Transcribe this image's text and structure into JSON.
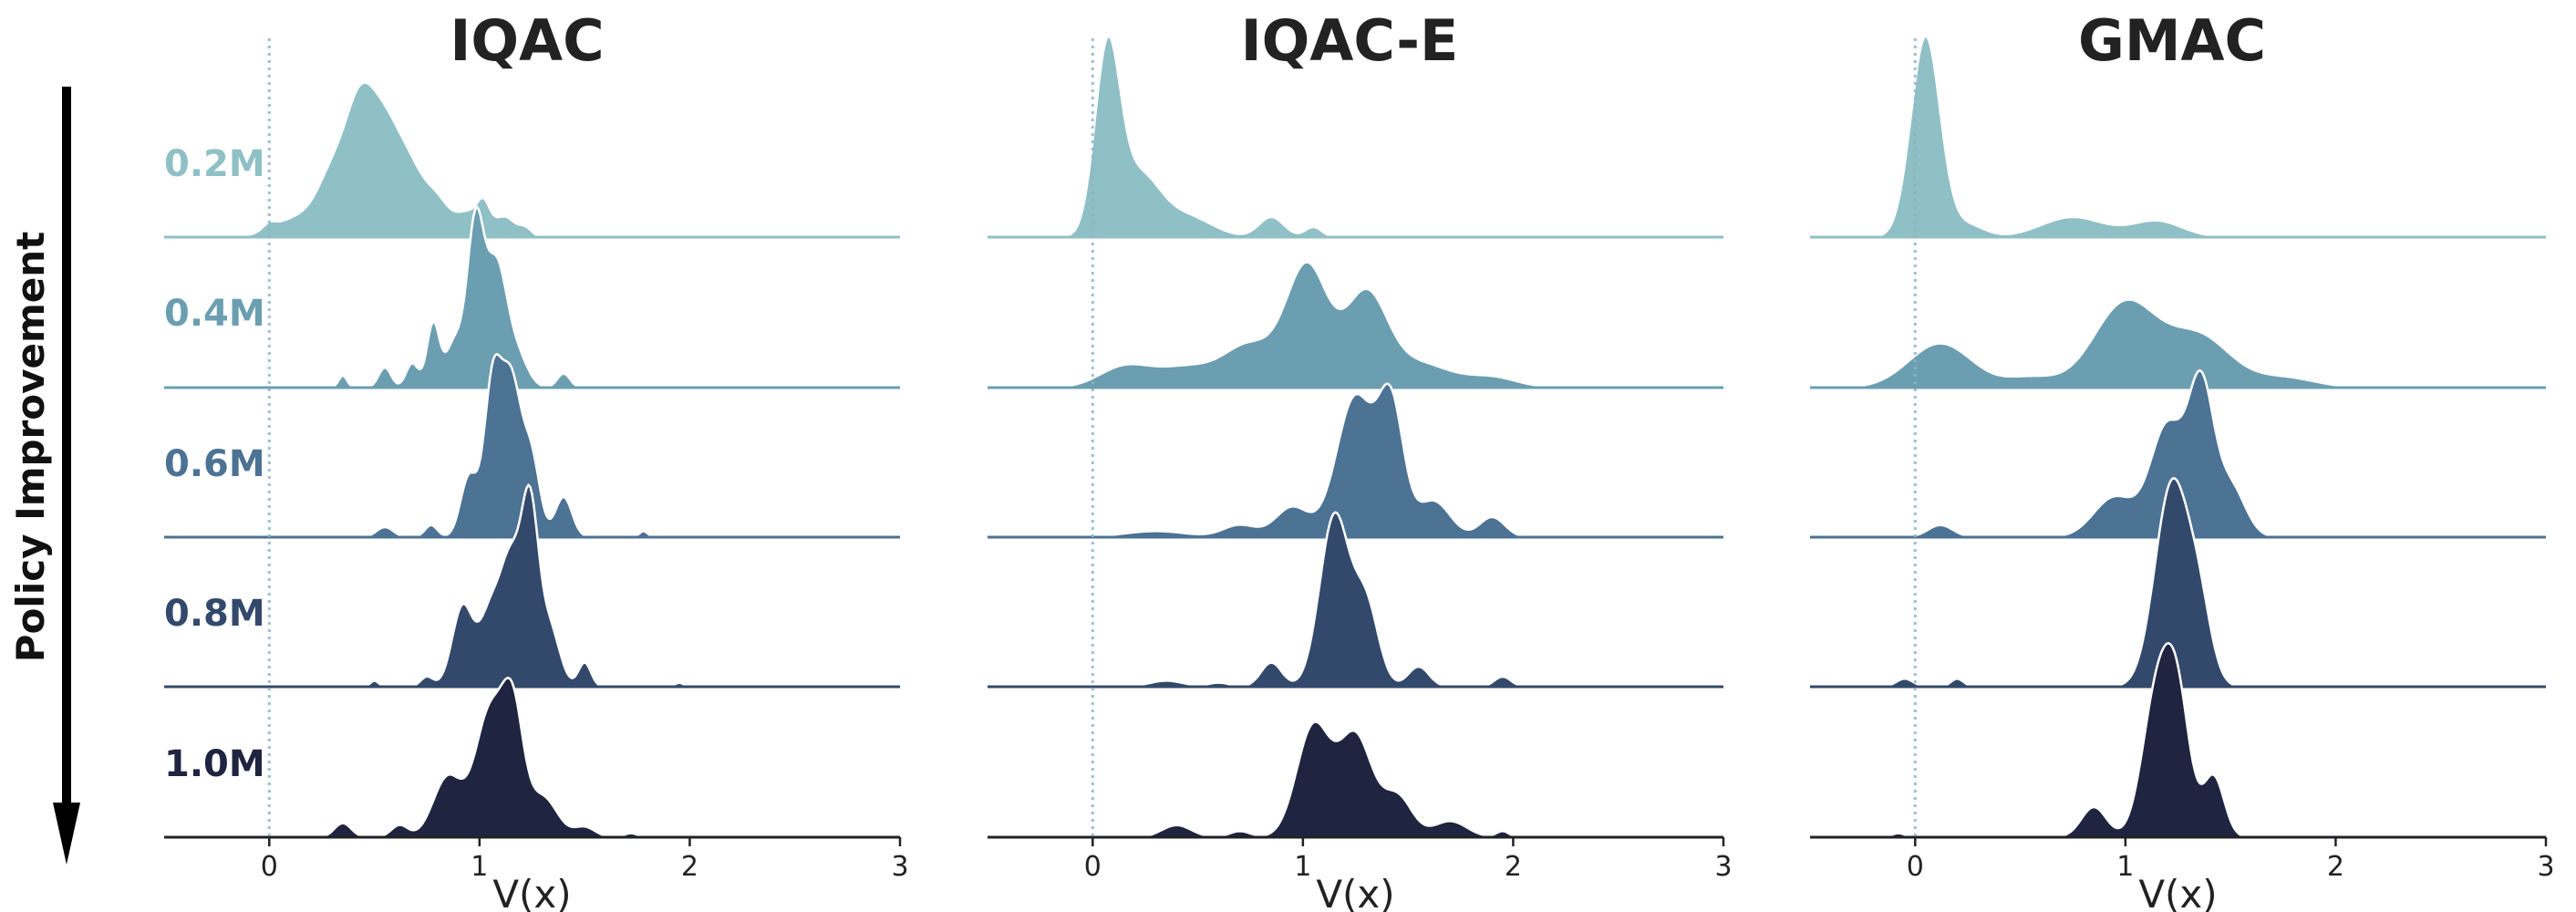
{
  "figure": {
    "side_label": "Policy Improvement"
  },
  "chart_data": {
    "type": "area",
    "kind": "ridgeline",
    "xlabel": "V(x)",
    "xlim": [
      -0.5,
      3
    ],
    "xticks": [
      0,
      1,
      2,
      3
    ],
    "reference_line_x": 0,
    "steps": [
      "0.2M",
      "0.4M",
      "0.6M",
      "0.8M",
      "1.0M"
    ],
    "step_colors": [
      "#8fc0c5",
      "#6b9eb0",
      "#4c7294",
      "#33496b",
      "#1f2440"
    ],
    "panels": [
      {
        "title": "IQAC",
        "series": [
          {
            "step": "0.2M",
            "peaks": [
              [
                0.0,
                0.03,
                0.03
              ],
              [
                0.15,
                0.1,
                0.12
              ],
              [
                0.3,
                0.25,
                0.07
              ],
              [
                0.43,
                0.6,
                0.07
              ],
              [
                0.55,
                0.45,
                0.07
              ],
              [
                0.67,
                0.3,
                0.07
              ],
              [
                0.8,
                0.16,
                0.06
              ],
              [
                0.95,
                0.12,
                0.06
              ],
              [
                1.02,
                0.12,
                0.03
              ],
              [
                1.12,
                0.1,
                0.05
              ],
              [
                1.22,
                0.04,
                0.03
              ]
            ]
          },
          {
            "step": "0.4M",
            "peaks": [
              [
                0.35,
                0.06,
                0.02
              ],
              [
                0.55,
                0.1,
                0.03
              ],
              [
                0.68,
                0.12,
                0.03
              ],
              [
                0.78,
                0.32,
                0.03
              ],
              [
                0.88,
                0.22,
                0.04
              ],
              [
                0.98,
                0.8,
                0.04
              ],
              [
                1.08,
                0.6,
                0.05
              ],
              [
                1.18,
                0.15,
                0.05
              ],
              [
                1.4,
                0.07,
                0.03
              ]
            ]
          },
          {
            "step": "0.6M",
            "peaks": [
              [
                0.55,
                0.05,
                0.04
              ],
              [
                0.77,
                0.06,
                0.03
              ],
              [
                0.95,
                0.3,
                0.04
              ],
              [
                1.06,
                0.7,
                0.04
              ],
              [
                1.15,
                0.78,
                0.05
              ],
              [
                1.25,
                0.35,
                0.04
              ],
              [
                1.4,
                0.2,
                0.04
              ],
              [
                1.78,
                0.03,
                0.02
              ]
            ]
          },
          {
            "step": "0.8M",
            "peaks": [
              [
                0.5,
                0.03,
                0.02
              ],
              [
                0.75,
                0.05,
                0.03
              ],
              [
                0.92,
                0.4,
                0.05
              ],
              [
                1.05,
                0.35,
                0.05
              ],
              [
                1.15,
                0.6,
                0.05
              ],
              [
                1.24,
                0.82,
                0.04
              ],
              [
                1.33,
                0.3,
                0.05
              ],
              [
                1.5,
                0.12,
                0.03
              ],
              [
                1.95,
                0.02,
                0.02
              ]
            ]
          },
          {
            "step": "1.0M",
            "peaks": [
              [
                0.35,
                0.07,
                0.04
              ],
              [
                0.62,
                0.06,
                0.04
              ],
              [
                0.85,
                0.3,
                0.07
              ],
              [
                1.05,
                0.62,
                0.07
              ],
              [
                1.16,
                0.55,
                0.05
              ],
              [
                1.3,
                0.2,
                0.07
              ],
              [
                1.5,
                0.05,
                0.05
              ],
              [
                1.72,
                0.02,
                0.03
              ]
            ]
          }
        ]
      },
      {
        "title": "IQAC-E",
        "series": [
          {
            "step": "0.2M",
            "peaks": [
              [
                0.07,
                0.9,
                0.06
              ],
              [
                0.22,
                0.3,
                0.1
              ],
              [
                0.45,
                0.1,
                0.12
              ],
              [
                0.85,
                0.1,
                0.06
              ],
              [
                1.05,
                0.05,
                0.04
              ]
            ]
          },
          {
            "step": "0.4M",
            "peaks": [
              [
                0.15,
                0.1,
                0.12
              ],
              [
                0.45,
                0.1,
                0.15
              ],
              [
                0.75,
                0.2,
                0.12
              ],
              [
                1.02,
                0.6,
                0.1
              ],
              [
                1.3,
                0.45,
                0.1
              ],
              [
                1.55,
                0.12,
                0.15
              ],
              [
                1.9,
                0.05,
                0.12
              ]
            ]
          },
          {
            "step": "0.6M",
            "peaks": [
              [
                0.3,
                0.03,
                0.15
              ],
              [
                0.7,
                0.06,
                0.08
              ],
              [
                0.95,
                0.15,
                0.08
              ],
              [
                1.25,
                0.7,
                0.09
              ],
              [
                1.42,
                0.62,
                0.06
              ],
              [
                1.62,
                0.18,
                0.08
              ],
              [
                1.9,
                0.1,
                0.06
              ]
            ]
          },
          {
            "step": "0.8M",
            "peaks": [
              [
                0.35,
                0.03,
                0.08
              ],
              [
                0.6,
                0.02,
                0.05
              ],
              [
                0.85,
                0.12,
                0.05
              ],
              [
                1.15,
                0.85,
                0.07
              ],
              [
                1.3,
                0.4,
                0.06
              ],
              [
                1.55,
                0.1,
                0.05
              ],
              [
                1.95,
                0.05,
                0.04
              ]
            ]
          },
          {
            "step": "1.0M",
            "peaks": [
              [
                0.4,
                0.06,
                0.07
              ],
              [
                0.7,
                0.03,
                0.05
              ],
              [
                1.05,
                0.55,
                0.08
              ],
              [
                1.25,
                0.5,
                0.08
              ],
              [
                1.45,
                0.2,
                0.07
              ],
              [
                1.7,
                0.08,
                0.08
              ],
              [
                1.95,
                0.03,
                0.03
              ]
            ]
          }
        ]
      },
      {
        "title": "GMAC",
        "series": [
          {
            "step": "0.2M",
            "peaks": [
              [
                0.05,
                1.0,
                0.07
              ],
              [
                0.25,
                0.06,
                0.08
              ],
              [
                0.75,
                0.1,
                0.15
              ],
              [
                1.15,
                0.08,
                0.12
              ]
            ]
          },
          {
            "step": "0.4M",
            "peaks": [
              [
                0.12,
                0.22,
                0.15
              ],
              [
                0.55,
                0.05,
                0.12
              ],
              [
                1.0,
                0.42,
                0.15
              ],
              [
                1.35,
                0.25,
                0.15
              ],
              [
                1.75,
                0.05,
                0.15
              ]
            ]
          },
          {
            "step": "0.6M",
            "peaks": [
              [
                0.12,
                0.06,
                0.06
              ],
              [
                0.95,
                0.2,
                0.1
              ],
              [
                1.2,
                0.55,
                0.08
              ],
              [
                1.36,
                0.72,
                0.06
              ],
              [
                1.5,
                0.25,
                0.07
              ]
            ]
          },
          {
            "step": "0.8M",
            "peaks": [
              [
                -0.05,
                0.04,
                0.04
              ],
              [
                0.2,
                0.04,
                0.03
              ],
              [
                1.22,
                1.0,
                0.08
              ],
              [
                1.35,
                0.35,
                0.06
              ]
            ]
          },
          {
            "step": "1.0M",
            "peaks": [
              [
                -0.08,
                0.02,
                0.03
              ],
              [
                0.85,
                0.15,
                0.06
              ],
              [
                1.15,
                0.7,
                0.07
              ],
              [
                1.25,
                0.6,
                0.06
              ],
              [
                1.42,
                0.3,
                0.05
              ]
            ]
          }
        ]
      }
    ]
  }
}
